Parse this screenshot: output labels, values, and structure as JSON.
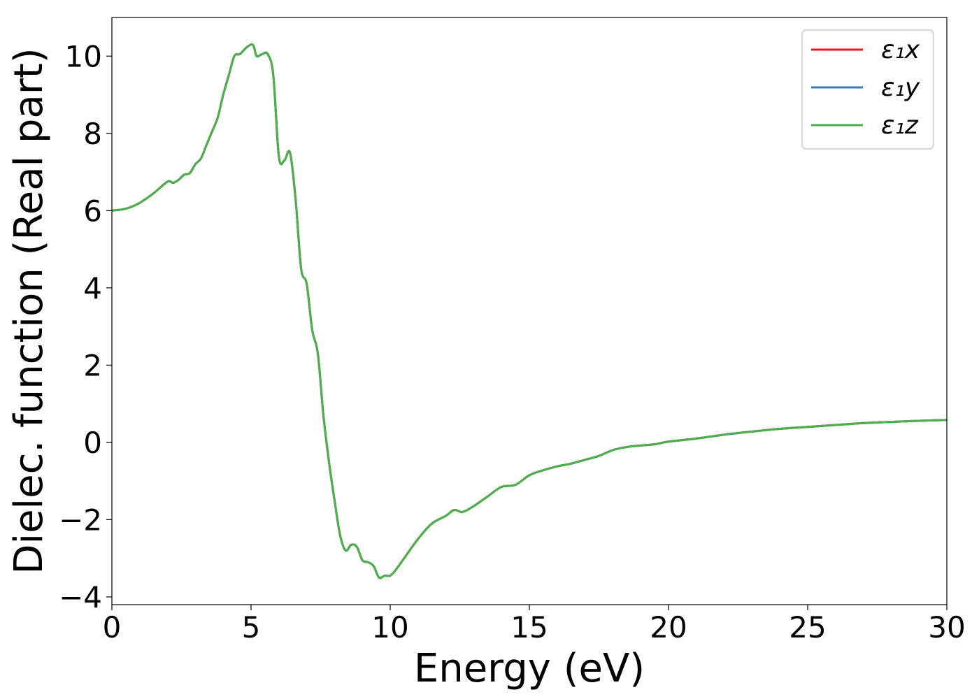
{
  "chart_data": {
    "type": "line",
    "title": "",
    "xlabel": "Energy (eV)",
    "ylabel": "Dielec. function (Real part)",
    "xlim": [
      0,
      30
    ],
    "ylim": [
      -4.2,
      11
    ],
    "x_ticks": [
      0,
      5,
      10,
      15,
      20,
      25,
      30
    ],
    "x_tick_labels": [
      "0",
      "5",
      "10",
      "15",
      "20",
      "25",
      "30"
    ],
    "y_ticks": [
      -4,
      -2,
      0,
      2,
      4,
      6,
      8,
      10
    ],
    "y_tick_labels": [
      "−4",
      "−2",
      "0",
      "2",
      "4",
      "6",
      "8",
      "10"
    ],
    "grid": false,
    "legend_position": "top-right",
    "x": [
      0,
      0.5,
      1.0,
      1.5,
      2.0,
      2.2,
      2.4,
      2.6,
      2.8,
      3.0,
      3.2,
      3.4,
      3.6,
      3.8,
      4.0,
      4.2,
      4.4,
      4.6,
      4.8,
      5.0,
      5.1,
      5.2,
      5.4,
      5.6,
      5.8,
      6.0,
      6.2,
      6.4,
      6.6,
      6.8,
      7.0,
      7.2,
      7.4,
      7.6,
      7.8,
      8.0,
      8.2,
      8.4,
      8.6,
      8.8,
      9.0,
      9.2,
      9.4,
      9.6,
      9.8,
      10.0,
      10.2,
      10.5,
      11.0,
      11.5,
      12.0,
      12.3,
      12.6,
      13.0,
      13.5,
      14.0,
      14.5,
      15.0,
      15.5,
      16.0,
      16.5,
      17.0,
      17.5,
      18.0,
      18.5,
      19.0,
      19.5,
      20.0,
      21.0,
      22.0,
      23.0,
      24.0,
      25.0,
      26.0,
      27.0,
      28.0,
      29.0,
      30.0
    ],
    "series": [
      {
        "name": "ε₁x",
        "color": "#e41a1c",
        "values": [
          6.0,
          6.05,
          6.2,
          6.45,
          6.75,
          6.72,
          6.8,
          6.93,
          6.97,
          7.2,
          7.35,
          7.7,
          8.05,
          8.4,
          9.0,
          9.5,
          10.0,
          10.05,
          10.2,
          10.3,
          10.25,
          10.0,
          10.05,
          10.05,
          9.5,
          7.4,
          7.3,
          7.5,
          6.3,
          4.5,
          4.1,
          2.9,
          2.3,
          0.7,
          -0.5,
          -1.5,
          -2.4,
          -2.8,
          -2.65,
          -2.7,
          -3.05,
          -3.1,
          -3.2,
          -3.5,
          -3.45,
          -3.45,
          -3.3,
          -3.0,
          -2.5,
          -2.1,
          -1.9,
          -1.75,
          -1.8,
          -1.65,
          -1.4,
          -1.15,
          -1.1,
          -0.85,
          -0.72,
          -0.62,
          -0.55,
          -0.45,
          -0.35,
          -0.2,
          -0.12,
          -0.08,
          -0.05,
          0.02,
          0.1,
          0.2,
          0.28,
          0.35,
          0.4,
          0.45,
          0.5,
          0.53,
          0.56,
          0.58
        ]
      },
      {
        "name": "ε₁y",
        "color": "#377eb8",
        "values": [
          6.0,
          6.05,
          6.2,
          6.45,
          6.75,
          6.72,
          6.8,
          6.93,
          6.97,
          7.2,
          7.35,
          7.7,
          8.05,
          8.4,
          9.0,
          9.5,
          10.0,
          10.05,
          10.2,
          10.3,
          10.25,
          10.0,
          10.05,
          10.05,
          9.5,
          7.4,
          7.3,
          7.5,
          6.3,
          4.5,
          4.1,
          2.9,
          2.3,
          0.7,
          -0.5,
          -1.5,
          -2.4,
          -2.8,
          -2.65,
          -2.7,
          -3.05,
          -3.1,
          -3.2,
          -3.5,
          -3.45,
          -3.45,
          -3.3,
          -3.0,
          -2.5,
          -2.1,
          -1.9,
          -1.75,
          -1.8,
          -1.65,
          -1.4,
          -1.15,
          -1.1,
          -0.85,
          -0.72,
          -0.62,
          -0.55,
          -0.45,
          -0.35,
          -0.2,
          -0.12,
          -0.08,
          -0.05,
          0.02,
          0.1,
          0.2,
          0.28,
          0.35,
          0.4,
          0.45,
          0.5,
          0.53,
          0.56,
          0.58
        ]
      },
      {
        "name": "ε₁z",
        "color": "#4daf4a",
        "values": [
          6.0,
          6.05,
          6.2,
          6.45,
          6.75,
          6.72,
          6.8,
          6.93,
          6.97,
          7.2,
          7.35,
          7.7,
          8.05,
          8.4,
          9.0,
          9.5,
          10.0,
          10.05,
          10.2,
          10.3,
          10.25,
          10.0,
          10.05,
          10.05,
          9.5,
          7.4,
          7.3,
          7.5,
          6.3,
          4.5,
          4.1,
          2.9,
          2.3,
          0.7,
          -0.5,
          -1.5,
          -2.4,
          -2.8,
          -2.65,
          -2.7,
          -3.05,
          -3.1,
          -3.2,
          -3.5,
          -3.45,
          -3.45,
          -3.3,
          -3.0,
          -2.5,
          -2.1,
          -1.9,
          -1.75,
          -1.8,
          -1.65,
          -1.4,
          -1.15,
          -1.1,
          -0.85,
          -0.72,
          -0.62,
          -0.55,
          -0.45,
          -0.35,
          -0.2,
          -0.12,
          -0.08,
          -0.05,
          0.02,
          0.1,
          0.2,
          0.28,
          0.35,
          0.4,
          0.45,
          0.5,
          0.53,
          0.56,
          0.58
        ]
      }
    ]
  }
}
